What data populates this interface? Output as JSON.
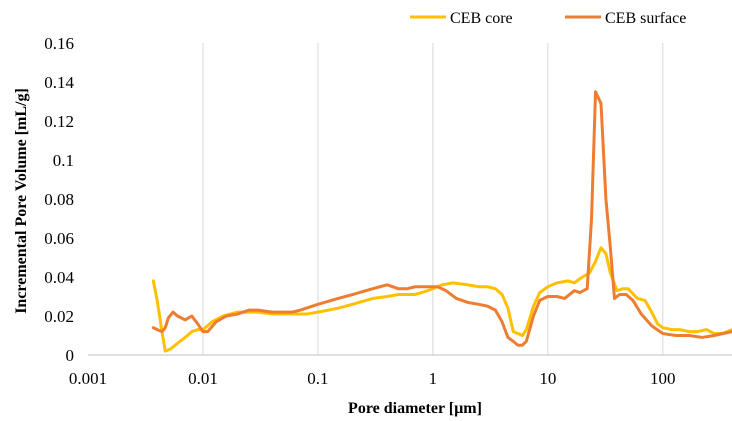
{
  "chart_data": {
    "type": "line",
    "xscale": "log",
    "xlabel": "Pore diameter [µm]",
    "ylabel": "Incremental Pore Volume [mL/g]",
    "xlim": [
      0.001,
      400
    ],
    "ylim": [
      0,
      0.16
    ],
    "x_ticks": [
      0.001,
      0.01,
      0.1,
      1,
      10,
      100
    ],
    "x_tick_labels": [
      "0.001",
      "0.01",
      "0.1",
      "1",
      "10",
      "100"
    ],
    "y_ticks": [
      0,
      0.02,
      0.04,
      0.06,
      0.08,
      0.1,
      0.12,
      0.14,
      0.16
    ],
    "y_tick_labels": [
      "0",
      "0.02",
      "0.04",
      "0.06",
      "0.08",
      "0.1",
      "0.12",
      "0.14",
      "0.16"
    ],
    "grid": "vertical",
    "legend_position": "top-right",
    "series": [
      {
        "name": "CEB core",
        "color": "#FFC000",
        "points": [
          [
            0.0037,
            0.038
          ],
          [
            0.004,
            0.028
          ],
          [
            0.0044,
            0.012
          ],
          [
            0.0047,
            0.002
          ],
          [
            0.0052,
            0.003
          ],
          [
            0.006,
            0.006
          ],
          [
            0.007,
            0.009
          ],
          [
            0.008,
            0.012
          ],
          [
            0.009,
            0.013
          ],
          [
            0.01,
            0.013
          ],
          [
            0.012,
            0.017
          ],
          [
            0.015,
            0.02
          ],
          [
            0.02,
            0.022
          ],
          [
            0.03,
            0.022
          ],
          [
            0.04,
            0.021
          ],
          [
            0.06,
            0.021
          ],
          [
            0.08,
            0.021
          ],
          [
            0.1,
            0.022
          ],
          [
            0.15,
            0.024
          ],
          [
            0.2,
            0.026
          ],
          [
            0.3,
            0.029
          ],
          [
            0.4,
            0.03
          ],
          [
            0.5,
            0.031
          ],
          [
            0.7,
            0.031
          ],
          [
            0.9,
            0.033
          ],
          [
            1.0,
            0.034
          ],
          [
            1.2,
            0.036
          ],
          [
            1.5,
            0.037
          ],
          [
            2.0,
            0.036
          ],
          [
            2.5,
            0.035
          ],
          [
            3.0,
            0.035
          ],
          [
            3.5,
            0.034
          ],
          [
            4.0,
            0.031
          ],
          [
            4.5,
            0.024
          ],
          [
            5.0,
            0.012
          ],
          [
            5.5,
            0.011
          ],
          [
            6.0,
            0.01
          ],
          [
            6.5,
            0.013
          ],
          [
            7.5,
            0.025
          ],
          [
            8.5,
            0.032
          ],
          [
            10,
            0.035
          ],
          [
            12,
            0.037
          ],
          [
            15,
            0.038
          ],
          [
            17,
            0.037
          ],
          [
            20,
            0.04
          ],
          [
            23,
            0.042
          ],
          [
            26,
            0.048
          ],
          [
            29,
            0.055
          ],
          [
            32,
            0.052
          ],
          [
            35,
            0.042
          ],
          [
            40,
            0.033
          ],
          [
            45,
            0.034
          ],
          [
            50,
            0.034
          ],
          [
            60,
            0.029
          ],
          [
            70,
            0.028
          ],
          [
            80,
            0.022
          ],
          [
            90,
            0.016
          ],
          [
            100,
            0.014
          ],
          [
            120,
            0.013
          ],
          [
            140,
            0.013
          ],
          [
            170,
            0.012
          ],
          [
            200,
            0.012
          ],
          [
            240,
            0.013
          ],
          [
            280,
            0.011
          ],
          [
            330,
            0.011
          ],
          [
            400,
            0.013
          ]
        ]
      },
      {
        "name": "CEB surface",
        "color": "#ED7D31",
        "points": [
          [
            0.0037,
            0.014
          ],
          [
            0.004,
            0.013
          ],
          [
            0.0044,
            0.012
          ],
          [
            0.0047,
            0.014
          ],
          [
            0.005,
            0.019
          ],
          [
            0.0055,
            0.022
          ],
          [
            0.006,
            0.02
          ],
          [
            0.007,
            0.018
          ],
          [
            0.008,
            0.02
          ],
          [
            0.009,
            0.016
          ],
          [
            0.01,
            0.012
          ],
          [
            0.011,
            0.012
          ],
          [
            0.013,
            0.017
          ],
          [
            0.016,
            0.02
          ],
          [
            0.02,
            0.021
          ],
          [
            0.025,
            0.023
          ],
          [
            0.03,
            0.023
          ],
          [
            0.04,
            0.022
          ],
          [
            0.06,
            0.022
          ],
          [
            0.07,
            0.023
          ],
          [
            0.1,
            0.026
          ],
          [
            0.15,
            0.029
          ],
          [
            0.2,
            0.031
          ],
          [
            0.3,
            0.034
          ],
          [
            0.4,
            0.036
          ],
          [
            0.5,
            0.034
          ],
          [
            0.6,
            0.034
          ],
          [
            0.7,
            0.035
          ],
          [
            0.9,
            0.035
          ],
          [
            1.1,
            0.035
          ],
          [
            1.3,
            0.033
          ],
          [
            1.6,
            0.029
          ],
          [
            2.0,
            0.027
          ],
          [
            2.5,
            0.026
          ],
          [
            3.0,
            0.025
          ],
          [
            3.5,
            0.023
          ],
          [
            4.0,
            0.017
          ],
          [
            4.5,
            0.009
          ],
          [
            5.0,
            0.007
          ],
          [
            5.5,
            0.005
          ],
          [
            6.0,
            0.005
          ],
          [
            6.5,
            0.007
          ],
          [
            7.5,
            0.02
          ],
          [
            8.5,
            0.028
          ],
          [
            10,
            0.03
          ],
          [
            12,
            0.03
          ],
          [
            14,
            0.029
          ],
          [
            17,
            0.033
          ],
          [
            19,
            0.032
          ],
          [
            22,
            0.034
          ],
          [
            24,
            0.07
          ],
          [
            26,
            0.135
          ],
          [
            29,
            0.129
          ],
          [
            32,
            0.08
          ],
          [
            35,
            0.055
          ],
          [
            38,
            0.029
          ],
          [
            42,
            0.031
          ],
          [
            48,
            0.031
          ],
          [
            55,
            0.028
          ],
          [
            65,
            0.021
          ],
          [
            80,
            0.015
          ],
          [
            100,
            0.011
          ],
          [
            130,
            0.01
          ],
          [
            170,
            0.01
          ],
          [
            220,
            0.009
          ],
          [
            280,
            0.01
          ],
          [
            400,
            0.012
          ]
        ]
      }
    ]
  }
}
